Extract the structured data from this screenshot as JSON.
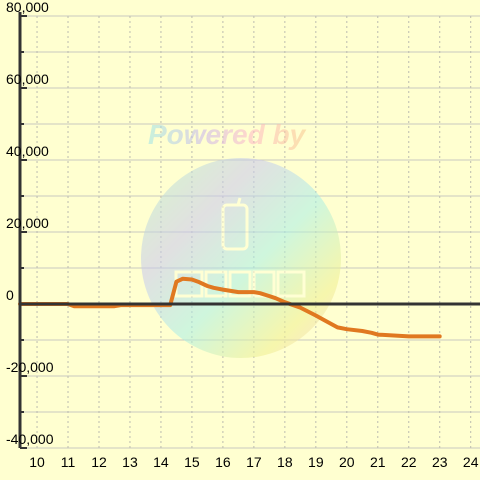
{
  "watermark": {
    "text": "Powered by",
    "logo_name": "mapion-logo"
  },
  "colors": {
    "background": "#ffffd0",
    "grid_major": "#c8c8c0",
    "grid_minor": "#bcbcb0",
    "axis": "#333333",
    "series": "#e07820"
  },
  "chart_data": {
    "type": "line",
    "title": "",
    "xlabel": "",
    "ylabel": "",
    "xlim": [
      9.45,
      24.3
    ],
    "ylim": [
      -40000,
      80000
    ],
    "x_ticks": [
      10,
      11,
      12,
      13,
      14,
      15,
      16,
      17,
      18,
      19,
      20,
      21,
      22,
      23,
      24
    ],
    "y_ticks": [
      -40000,
      -20000,
      0,
      20000,
      40000,
      60000,
      80000
    ],
    "y_tick_labels": [
      "-40,000",
      "-20,000",
      "0",
      "20,000",
      "40,000",
      "60,000",
      "80,000"
    ],
    "x_tick_labels": [
      "10",
      "11",
      "12",
      "13",
      "14",
      "15",
      "16",
      "17",
      "18",
      "19",
      "20",
      "21",
      "22",
      "23",
      "24"
    ],
    "grid": true,
    "series": [
      {
        "x": [
          9.45,
          11.0,
          11.2,
          12.5,
          12.7,
          14.3,
          14.5,
          14.7,
          15.0,
          15.2,
          15.5,
          15.7,
          16.0,
          16.5,
          17.0,
          17.2,
          17.5,
          17.7,
          18.0,
          18.5,
          19.0,
          19.3,
          19.7,
          20.0,
          20.5,
          20.8,
          21.0,
          22.0,
          23.0
        ],
        "y": [
          0,
          0,
          -600,
          -600,
          -300,
          -300,
          6200,
          7000,
          6800,
          6200,
          5000,
          4500,
          4000,
          3300,
          3300,
          3000,
          2200,
          1600,
          500,
          -1000,
          -3200,
          -4600,
          -6500,
          -7000,
          -7500,
          -8000,
          -8500,
          -9000,
          -9000
        ]
      }
    ]
  }
}
